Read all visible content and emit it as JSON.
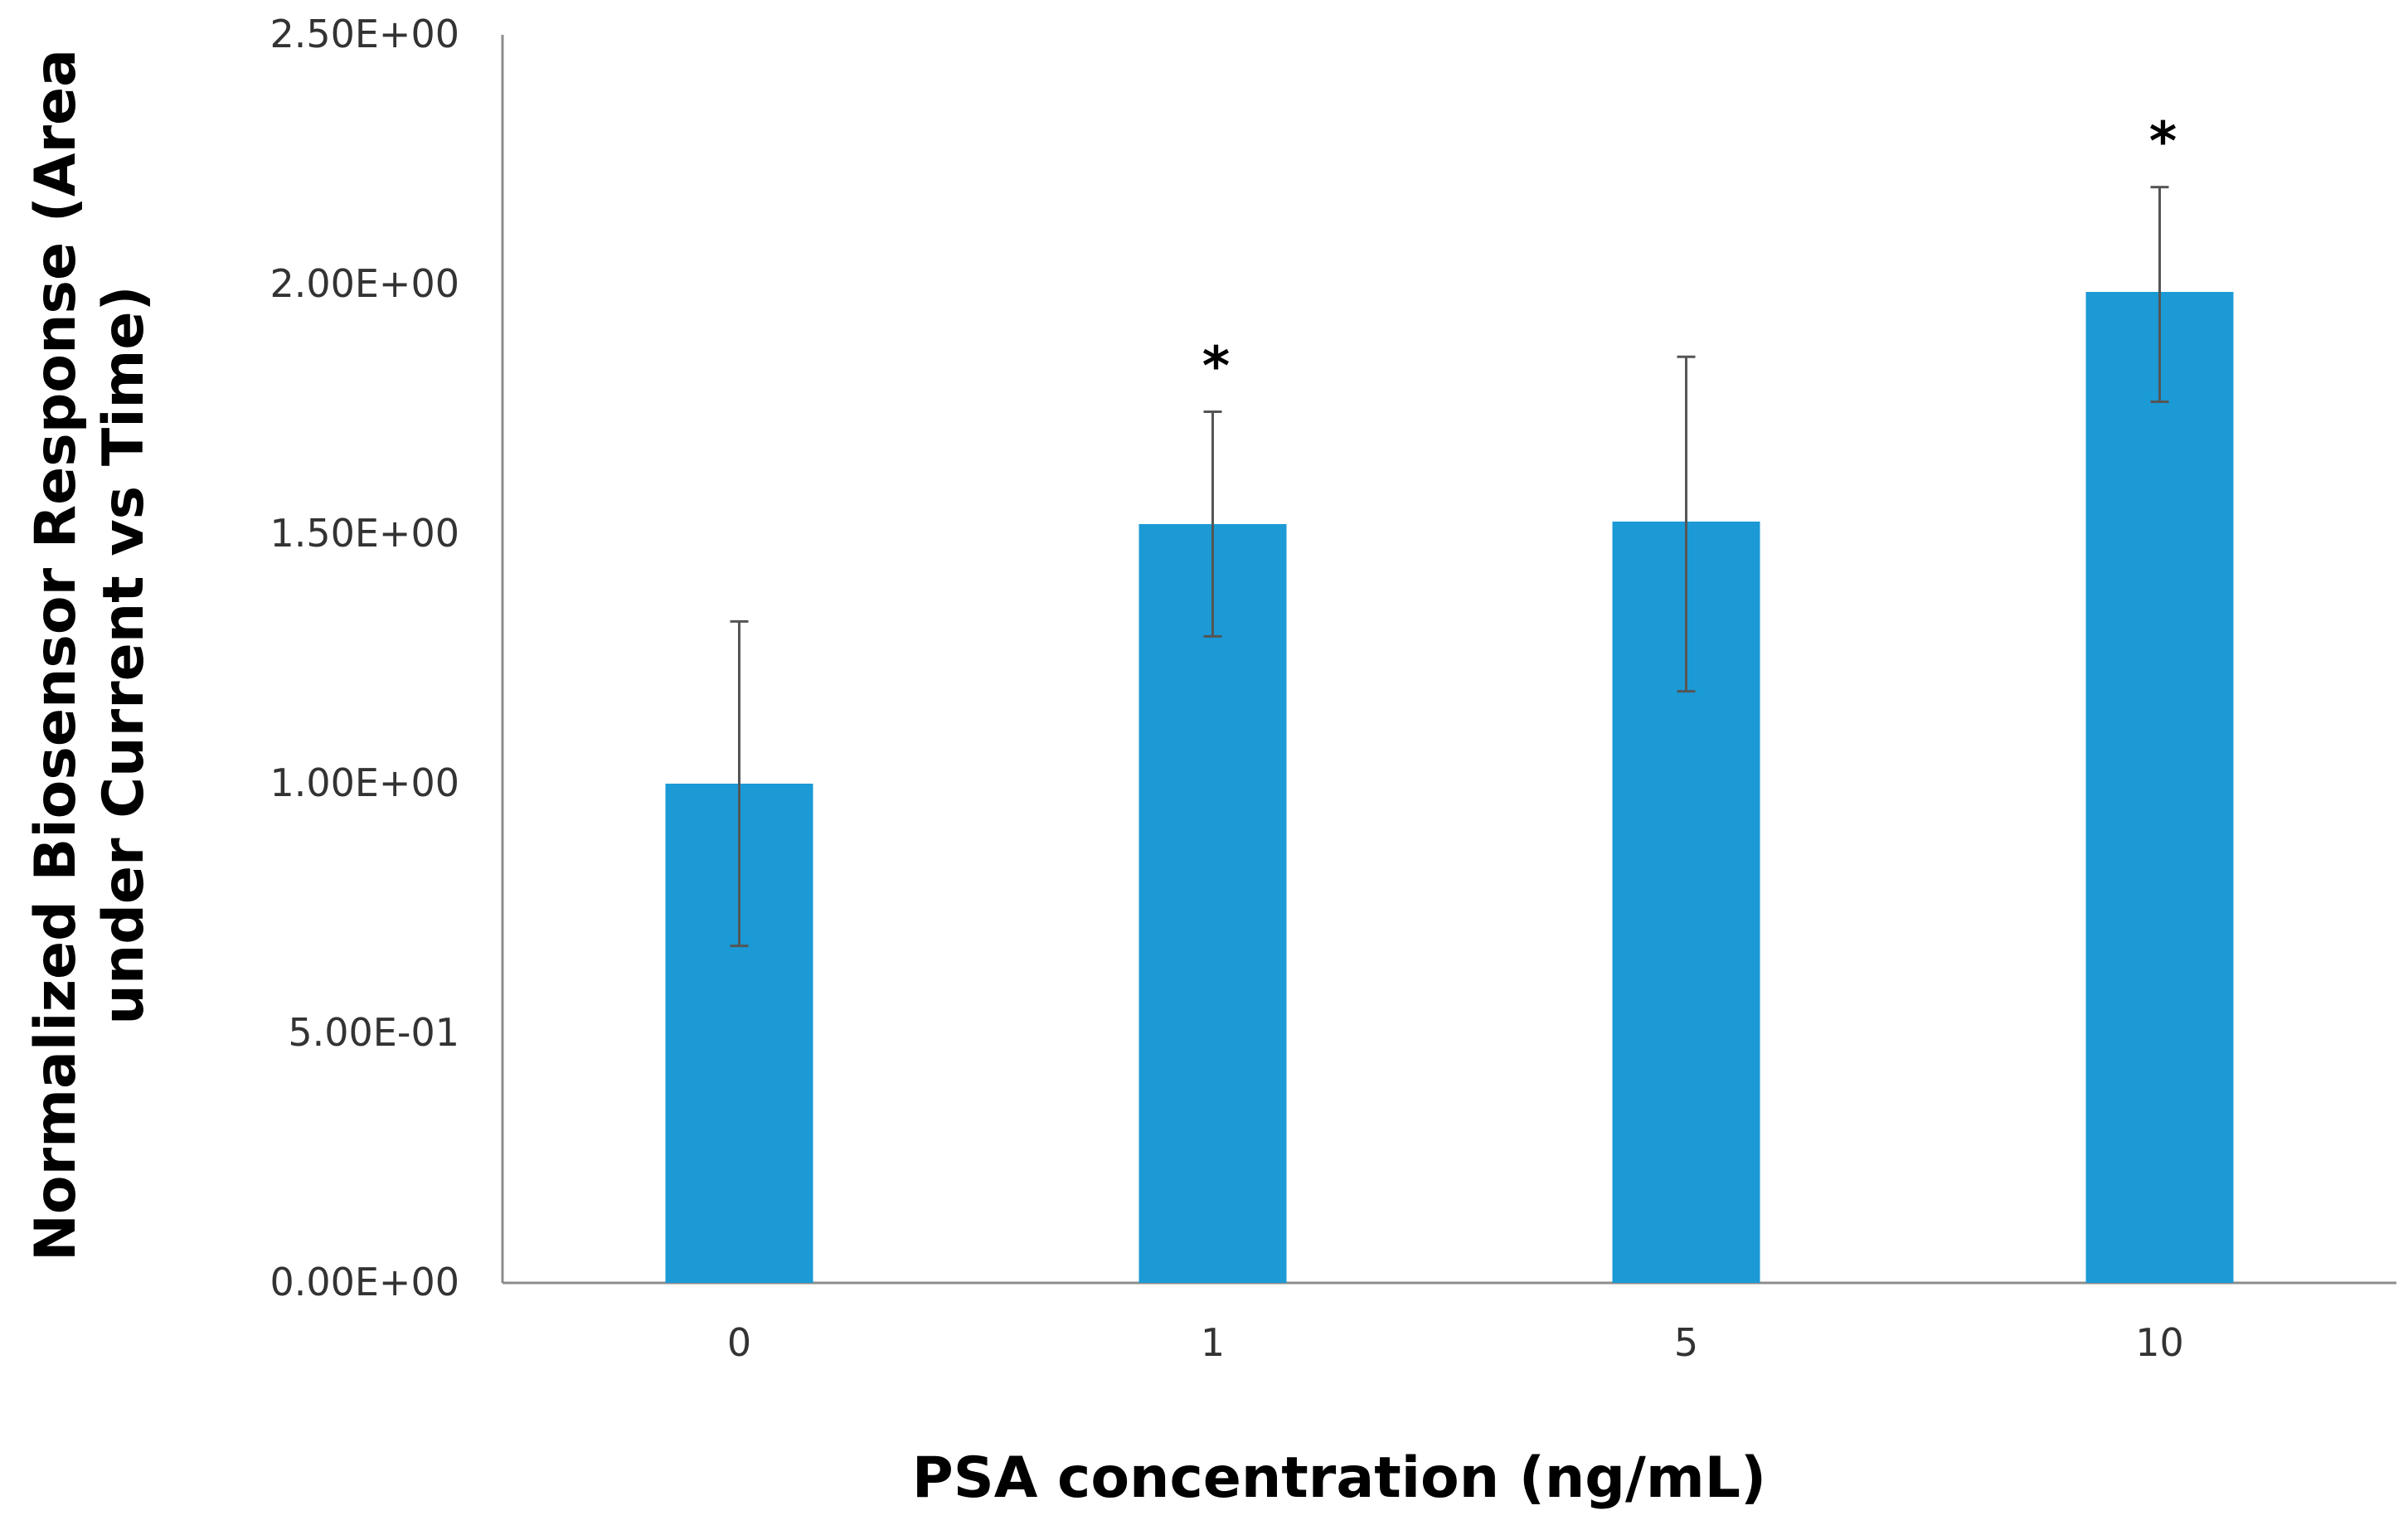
{
  "chart_data": {
    "type": "bar",
    "categories": [
      "0",
      "1",
      "5",
      "10"
    ],
    "values": [
      1.0,
      1.52,
      1.525,
      1.985
    ],
    "error_bars": [
      {
        "low": 0.675,
        "high": 1.325
      },
      {
        "low": 1.295,
        "high": 1.745
      },
      {
        "low": 1.185,
        "high": 1.855
      },
      {
        "low": 1.765,
        "high": 2.195
      }
    ],
    "significance": [
      "",
      "*",
      "",
      "*"
    ],
    "xlabel": "PSA concentration (ng/mL)",
    "ylabel_lines": [
      "Normalized Biosensor Response (Area",
      "under Current vs Time)"
    ],
    "yticks": [
      0,
      0.5,
      1.0,
      1.5,
      2.0,
      2.5
    ],
    "ytick_labels": [
      "0.00E+00",
      "5.00E-01",
      "1.00E+00",
      "1.50E+00",
      "2.00E+00",
      "2.50E+00"
    ],
    "ylim": [
      0,
      2.5
    ],
    "grid": false,
    "bar_color": "#1b9ad6",
    "error_bar_color": "#555555",
    "axis_color": "#8c8c8c"
  }
}
